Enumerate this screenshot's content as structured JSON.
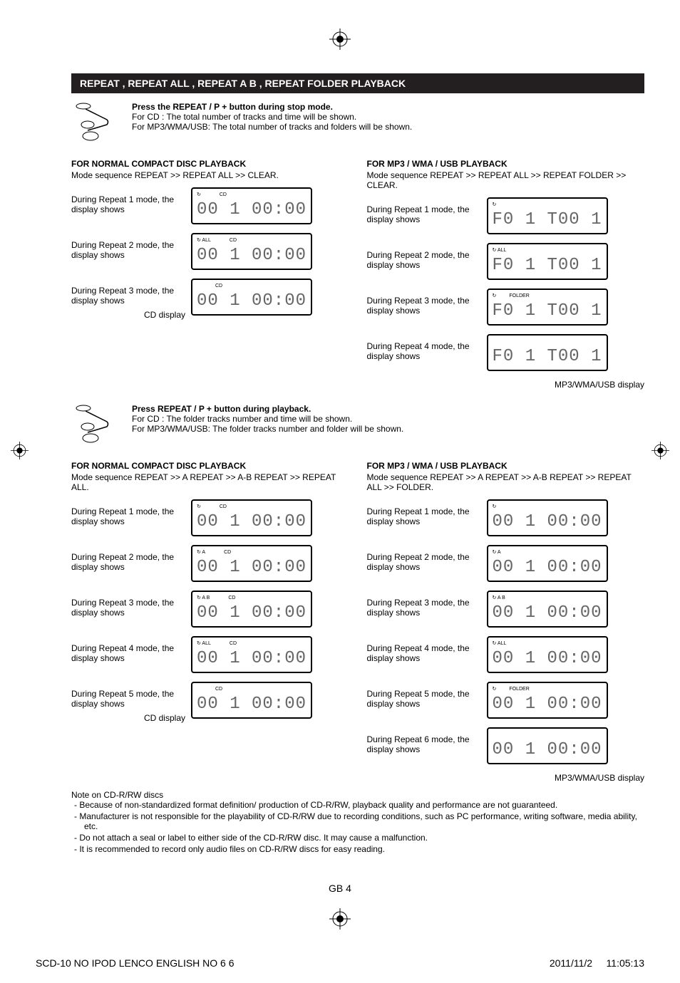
{
  "doc": {
    "section_title": "REPEAT , REPEAT ALL , REPEAT A B , REPEAT FOLDER PLAYBACK",
    "intro1_bold": "Press the REPEAT / P + button during stop mode.",
    "intro1_cd": "For CD : The total number of tracks and time will be shown.",
    "intro1_mp3": "For MP3/WMA/USB: The total number of tracks and folders will be shown.",
    "intro2_bold": "Press REPEAT / P + button during playback.",
    "intro2_cd": "For CD : The folder tracks number and time will be shown.",
    "intro2_mp3": "For MP3/WMA/USB: The folder tracks number and folder will be shown.",
    "page_num": "GB 4",
    "file_name": "SCD-10 NO IPOD LENCO ENGLISH NO 6   6",
    "file_date": "2011/11/2",
    "file_time": "11:05:13"
  },
  "cd_stop": {
    "title": "FOR NORMAL COMPACT DISC PLAYBACK",
    "seq": "Mode sequence REPEAT >> REPEAT ALL >> CLEAR.",
    "modes": [
      {
        "text": "During Repeat 1 mode, the display shows",
        "icons_left": "↻",
        "icons_mid": "CD",
        "seg1": "00 1",
        "seg2": "00:00"
      },
      {
        "text": "During Repeat 2 mode, the display shows",
        "icons_left": "↻ ALL",
        "icons_mid": "CD",
        "seg1": "00 1",
        "seg2": "00:00"
      },
      {
        "text": "During Repeat 3 mode, the display shows",
        "icons_left": "",
        "icons_mid": "CD",
        "seg1": "00 1",
        "seg2": "00:00"
      }
    ],
    "disp_label_pre": "CD display",
    "disp_label": "CD display"
  },
  "mp3_stop": {
    "title": "FOR MP3 / WMA / USB PLAYBACK",
    "seq": "Mode sequence REPEAT >> REPEAT ALL >> REPEAT FOLDER  >> CLEAR.",
    "modes": [
      {
        "text": "During Repeat 1 mode, the display shows",
        "icons_left": "↻",
        "icons_folder": "",
        "seg1": "F0 1",
        "seg2": "T00 1"
      },
      {
        "text": "During Repeat 2 mode, the display shows",
        "icons_left": "↻ ALL",
        "icons_folder": "",
        "seg1": "F0 1",
        "seg2": "T00 1"
      },
      {
        "text": "During Repeat 3 mode, the display shows",
        "icons_left": "↻",
        "icons_folder": "FOLDER",
        "seg1": "F0 1",
        "seg2": "T00 1"
      },
      {
        "text": "During Repeat 4 mode, the display shows",
        "icons_left": "",
        "icons_folder": "",
        "seg1": "F0 1",
        "seg2": "T00 1"
      }
    ],
    "disp_label": "MP3/WMA/USB display"
  },
  "cd_play": {
    "title": "FOR NORMAL COMPACT DISC PLAYBACK",
    "seq": "Mode sequence REPEAT >> A REPEAT >> A-B REPEAT >> REPEAT ALL.",
    "modes": [
      {
        "text": "During Repeat 1 mode, the display shows",
        "icons_left": "↻",
        "icons_mid": "CD",
        "seg1": "00 1",
        "seg2": "00:00"
      },
      {
        "text": "During Repeat 2 mode, the display shows",
        "icons_left": "↻ A",
        "icons_mid": "CD",
        "seg1": "00 1",
        "seg2": "00:00"
      },
      {
        "text": "During Repeat 3 mode, the display shows",
        "icons_left": "↻ A  B",
        "icons_mid": "CD",
        "seg1": "00 1",
        "seg2": "00:00"
      },
      {
        "text": "During Repeat 4 mode, the display shows",
        "icons_left": "↻ ALL",
        "icons_mid": "CD",
        "seg1": "00 1",
        "seg2": "00:00"
      },
      {
        "text": "During Repeat 5 mode, the display shows",
        "icons_left": "",
        "icons_mid": "CD",
        "seg1": "00 1",
        "seg2": "00:00"
      }
    ],
    "disp_label_pre": "CD display",
    "disp_label": "CD display"
  },
  "mp3_play": {
    "title": "FOR MP3 / WMA / USB PLAYBACK",
    "seq": "Mode sequence REPEAT >> A REPEAT >> A-B REPEAT >> REPEAT ALL >> FOLDER.",
    "modes": [
      {
        "text": "During Repeat 1 mode, the display shows",
        "icons_left": "↻",
        "icons_folder": "",
        "seg1": "00 1",
        "seg2": "00:00"
      },
      {
        "text": "During Repeat 2 mode, the display shows",
        "icons_left": "↻ A",
        "icons_folder": "",
        "seg1": "00 1",
        "seg2": "00:00"
      },
      {
        "text": "During Repeat 3 mode, the display shows",
        "icons_left": "↻ A  B",
        "icons_folder": "",
        "seg1": "00 1",
        "seg2": "00:00"
      },
      {
        "text": "During Repeat 4 mode, the display shows",
        "icons_left": "↻ ALL",
        "icons_folder": "",
        "seg1": "00 1",
        "seg2": "00:00"
      },
      {
        "text": "During Repeat 5 mode, the display shows",
        "icons_left": "↻",
        "icons_folder": "FOLDER",
        "seg1": "00 1",
        "seg2": "00:00"
      },
      {
        "text": "During Repeat 6 mode, the display shows",
        "icons_left": "",
        "icons_folder": "",
        "seg1": "00 1",
        "seg2": "00:00"
      }
    ],
    "disp_label": "MP3/WMA/USB display"
  },
  "notes": {
    "title": "Note on CD-R/RW discs",
    "items": [
      "Because of non-standardized format definition/ production of CD-R/RW, playback quality and performance are not guaranteed.",
      "Manufacturer is not responsible for the playability of CD-R/RW due to recording conditions, such as PC performance, writing software, media ability, etc.",
      "Do not attach a seal or label to either side of the CD-R/RW disc. It may cause a malfunction.",
      "It is recommended to record only audio files on CD-R/RW discs for easy reading."
    ]
  },
  "colors": {
    "header_bg": "#231f20",
    "header_fg": "#ffffff",
    "text": "#000000",
    "lcd_text": "#666666",
    "lcd_border": "#000000"
  }
}
